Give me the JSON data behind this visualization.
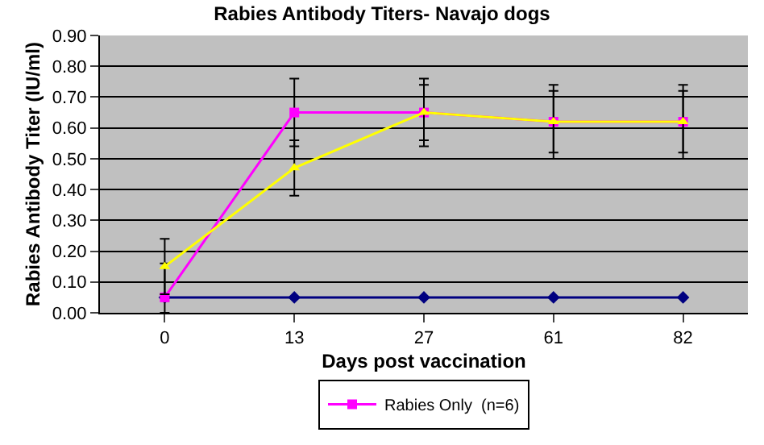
{
  "chart_data": {
    "type": "line",
    "title": "Rabies Antibody Titers- Navajo dogs",
    "xlabel": "Days post vaccination",
    "ylabel": "Rabies Antibody Titer (IU/ml)",
    "categories": [
      "0",
      "13",
      "27",
      "61",
      "82"
    ],
    "series": [
      {
        "color": "#000080",
        "marker": "diamond",
        "values": [
          0.05,
          0.05,
          0.05,
          0.05,
          0.05
        ]
      },
      {
        "name": "Rabies Only  (n=6)",
        "color": "#ff00ff",
        "marker": "square",
        "values": [
          0.05,
          0.65,
          0.65,
          0.62,
          0.62
        ],
        "errors": [
          [
            0.0,
            0.16
          ],
          [
            0.54,
            0.76
          ],
          [
            0.54,
            0.76
          ],
          [
            0.5,
            0.74
          ],
          [
            0.5,
            0.74
          ]
        ]
      },
      {
        "color": "#ffff00",
        "marker": "triangle",
        "values": [
          0.15,
          0.47,
          0.65,
          0.62,
          0.62
        ],
        "errors": [
          [
            0.06,
            0.24
          ],
          [
            0.38,
            0.56
          ],
          [
            0.56,
            0.74
          ],
          [
            0.52,
            0.72
          ],
          [
            0.52,
            0.72
          ]
        ]
      }
    ],
    "ylim": [
      0,
      0.9
    ],
    "yticks": [
      {
        "value": 0,
        "label": "0.00"
      },
      {
        "value": 0.1,
        "label": "0.10"
      },
      {
        "value": 0.2,
        "label": "0.20"
      },
      {
        "value": 0.3,
        "label": "0.30"
      },
      {
        "value": 0.4,
        "label": "0.40"
      },
      {
        "value": 0.5,
        "label": "0.50"
      },
      {
        "value": 0.6,
        "label": "0.60"
      },
      {
        "value": 0.7,
        "label": "0.70"
      },
      {
        "value": 0.8,
        "label": "0.80"
      },
      {
        "value": 0.9,
        "label": "0.90"
      }
    ],
    "grid": "y",
    "legend": "bottom"
  }
}
